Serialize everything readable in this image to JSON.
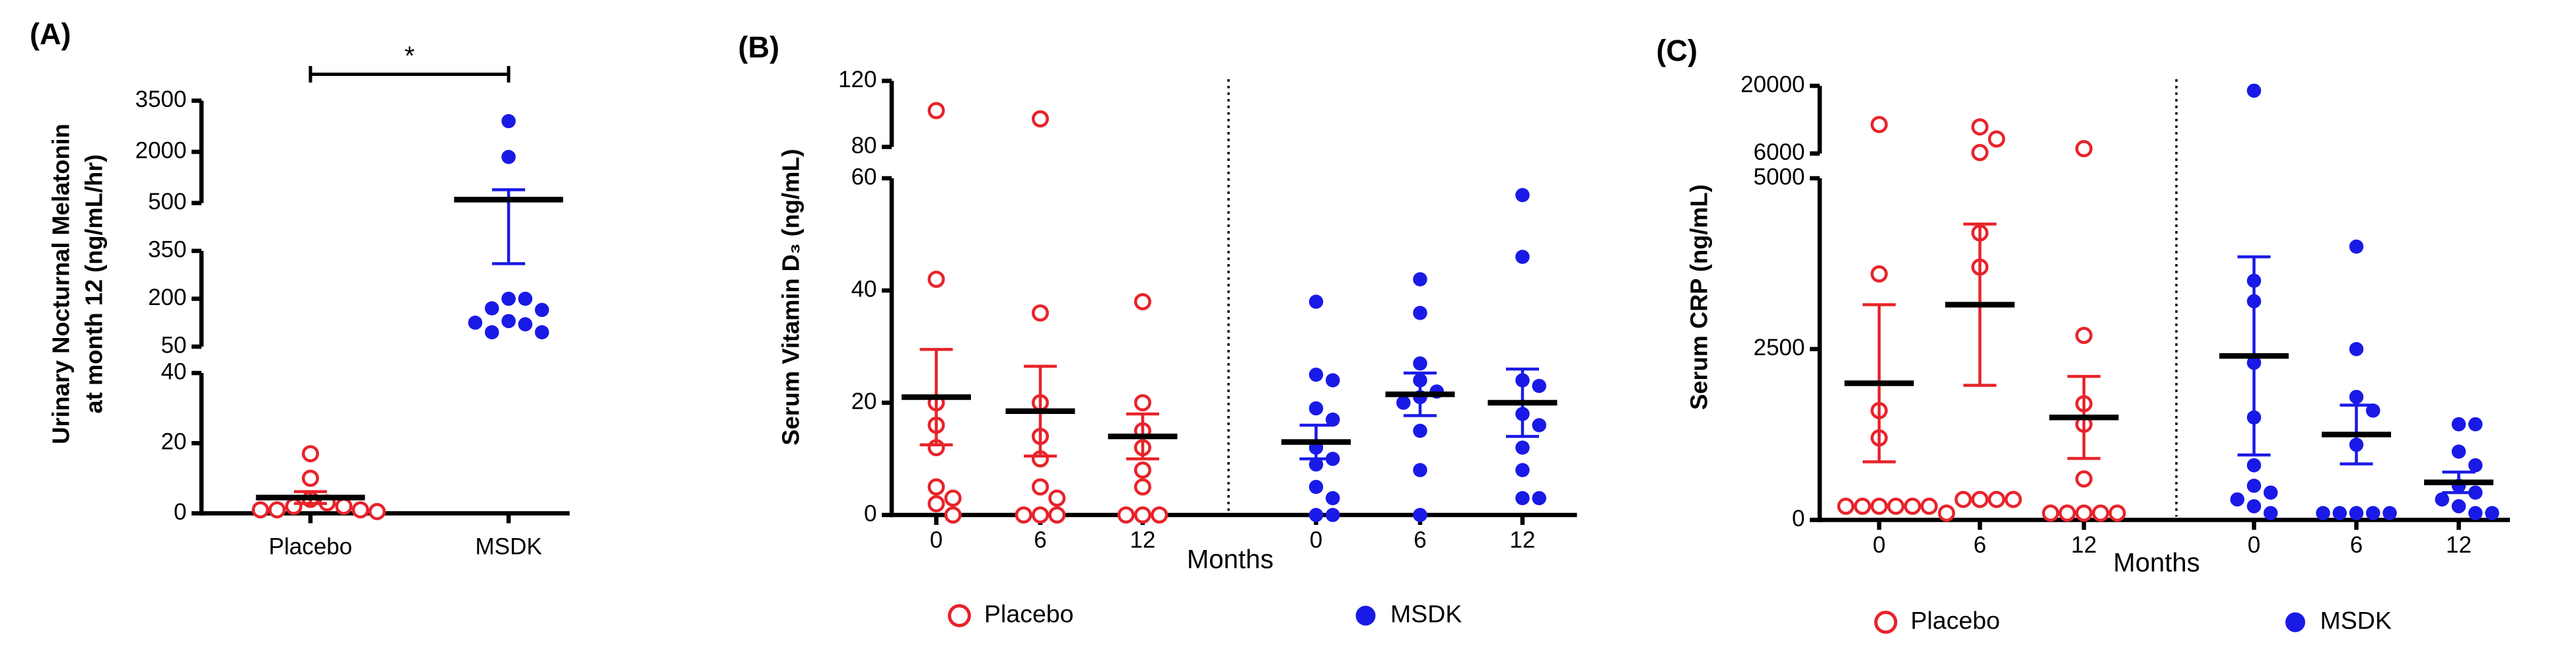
{
  "chart_data": [
    {
      "type": "dot",
      "label": "(A)",
      "ylabel": [
        "Urinary Nocturnal Melatonin",
        "at month 12 (ng/mL/hr)"
      ],
      "axis_segments": [
        {
          "ylim": [
            0,
            40
          ],
          "yticks": [
            0,
            20,
            40
          ]
        },
        {
          "ylim": [
            50,
            350
          ],
          "yticks": [
            50,
            200,
            350
          ]
        },
        {
          "ylim": [
            500,
            3500
          ],
          "yticks": [
            500,
            2000,
            3500
          ]
        }
      ],
      "categories": [
        "Placebo",
        "MSDK"
      ],
      "significance": "*",
      "series": [
        {
          "color": "#e8232a",
          "filled": false,
          "points": [
            [
              17,
              10,
              4,
              3,
              2,
              2,
              1,
              1,
              1,
              0.5
            ]
          ],
          "mean": [
            4.5
          ],
          "sem": [
            1.7
          ]
        },
        {
          "color": "#1a1ae6",
          "filled": true,
          "points": [
            [
              2900,
              1850,
              200,
              200,
              170,
              165,
              130,
              120,
              125,
              95,
              95
            ]
          ],
          "mean": [
            600
          ],
          "sem": [
            290
          ]
        }
      ]
    },
    {
      "type": "dot",
      "label": "(B)",
      "ylabel": [
        "Serum Vitamin D₃ (ng/mL)"
      ],
      "axis_segments": [
        {
          "ylim": [
            0,
            60
          ],
          "yticks": [
            0,
            20,
            40,
            60
          ]
        },
        {
          "ylim": [
            80,
            120
          ],
          "yticks": [
            80,
            120
          ]
        }
      ],
      "categories": [
        "0",
        "6",
        "12"
      ],
      "xlabel": "Months",
      "series": [
        {
          "name": "Placebo",
          "color": "#e8232a",
          "filled": false,
          "points": [
            [
              102,
              42,
              20,
              16,
              12,
              5,
              3,
              2,
              0
            ],
            [
              97,
              36,
              20,
              14,
              10,
              5,
              3,
              0,
              0,
              0
            ],
            [
              38,
              20,
              15,
              12,
              8,
              5,
              0,
              0,
              0
            ]
          ],
          "mean": [
            21,
            18.5,
            14
          ],
          "sem": [
            8.5,
            8,
            4
          ]
        },
        {
          "name": "MSDK",
          "color": "#1a1ae6",
          "filled": true,
          "points": [
            [
              38,
              25,
              24,
              19,
              17,
              12,
              10,
              9,
              5,
              3,
              0,
              0
            ],
            [
              42,
              36,
              27,
              24,
              22,
              21,
              20,
              15,
              8,
              0
            ],
            [
              57,
              46,
              24,
              23,
              18,
              16,
              12,
              8,
              3,
              3
            ]
          ],
          "mean": [
            13,
            21.5,
            20
          ],
          "sem": [
            3,
            3.8,
            6
          ]
        }
      ]
    },
    {
      "type": "dot",
      "label": "(C)",
      "ylabel": [
        "Serum CRP (ng/mL)"
      ],
      "axis_segments": [
        {
          "ylim": [
            0,
            5000
          ],
          "yticks": [
            0,
            2500,
            5000
          ]
        },
        {
          "ylim": [
            6000,
            20000
          ],
          "yticks": [
            6000,
            20000
          ]
        }
      ],
      "categories": [
        "0",
        "6",
        "12"
      ],
      "xlabel": "Months",
      "series": [
        {
          "name": "Placebo",
          "color": "#e8232a",
          "filled": false,
          "points": [
            [
              12000,
              3600,
              1600,
              1200,
              200,
              200,
              200,
              200,
              200,
              200
            ],
            [
              11500,
              9000,
              6200,
              4200,
              3700,
              300,
              300,
              300,
              300,
              100
            ],
            [
              7000,
              2700,
              1700,
              1400,
              600,
              100,
              100,
              100,
              100,
              100
            ]
          ],
          "mean": [
            2000,
            3150,
            1500
          ],
          "sem": [
            1150,
            1180,
            600
          ]
        },
        {
          "name": "MSDK",
          "color": "#1a1ae6",
          "filled": true,
          "points": [
            [
              19000,
              3500,
              3200,
              2300,
              1500,
              800,
              500,
              400,
              300,
              200,
              100
            ],
            [
              4000,
              2500,
              1800,
              1600,
              1100,
              100,
              100,
              100,
              100,
              100
            ],
            [
              1400,
              1400,
              1000,
              800,
              500,
              400,
              300,
              200,
              100,
              100
            ]
          ],
          "mean": [
            2400,
            1250,
            550
          ],
          "sem": [
            1450,
            430,
            150
          ]
        }
      ]
    }
  ]
}
